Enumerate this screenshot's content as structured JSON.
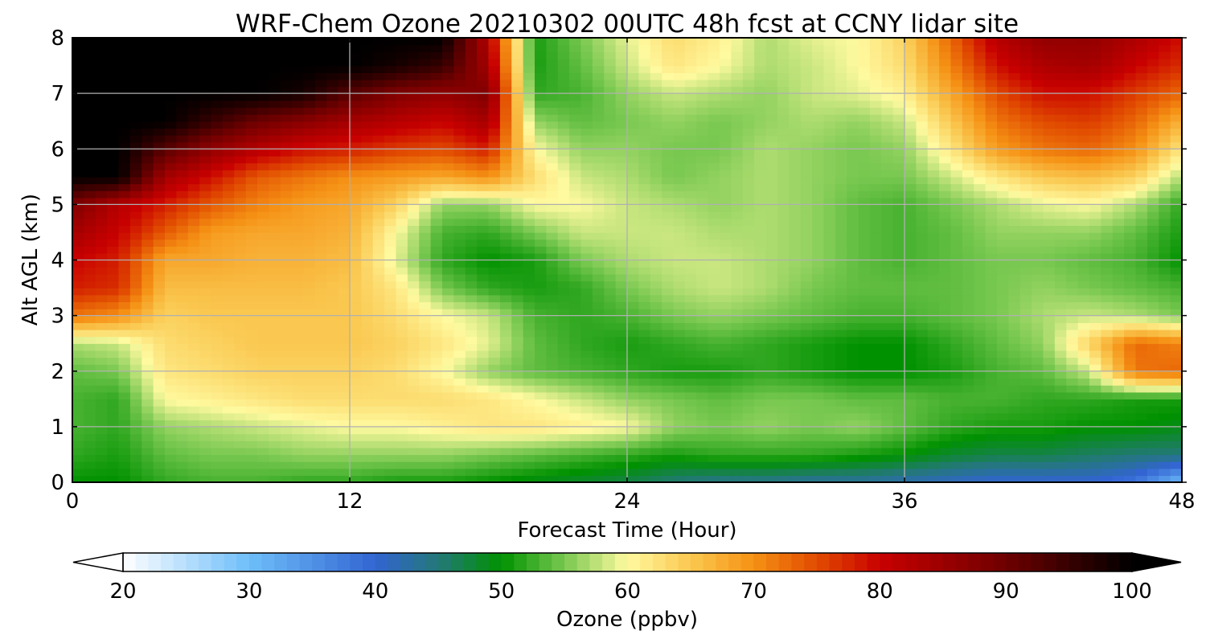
{
  "chart_data": {
    "type": "heatmap",
    "title": "WRF-Chem Ozone  20210302 00UTC 48h fcst at CCNY lidar site",
    "xlabel": "Forecast Time (Hour)",
    "ylabel": "Alt AGL (km)",
    "xlim": [
      0,
      48
    ],
    "ylim": [
      0,
      8
    ],
    "x_ticks": [
      "0",
      "12",
      "24",
      "36",
      "48"
    ],
    "y_ticks": [
      "0",
      "1",
      "2",
      "3",
      "4",
      "5",
      "6",
      "7",
      "8"
    ],
    "grid": true,
    "colorbar": {
      "label": "Ozone  (ppbv)",
      "min": 20,
      "max": 100,
      "ticks": [
        "20",
        "30",
        "40",
        "50",
        "60",
        "70",
        "80",
        "90",
        "100"
      ],
      "extend": "both",
      "orientation": "horizontal"
    },
    "x": [
      0,
      2,
      4,
      6,
      8,
      10,
      12,
      14,
      16,
      18,
      20,
      22,
      24,
      26,
      28,
      30,
      32,
      34,
      36,
      38,
      40,
      42,
      44,
      46,
      48
    ],
    "y": [
      0,
      0.5,
      1,
      1.5,
      2,
      2.5,
      3,
      3.5,
      4,
      4.5,
      5,
      5.5,
      6,
      6.5,
      7,
      7.5,
      8
    ],
    "z": [
      [
        50,
        50,
        52,
        53,
        53,
        52,
        52,
        51,
        51,
        50,
        49,
        48,
        47,
        45,
        44,
        44,
        43,
        43,
        42,
        41,
        40,
        40,
        40,
        38,
        30
      ],
      [
        52,
        51,
        54,
        55,
        55,
        56,
        56,
        56,
        56,
        55,
        54,
        53,
        52,
        51,
        52,
        52,
        52,
        51,
        50,
        48,
        47,
        47,
        46,
        45,
        45
      ],
      [
        53,
        52,
        56,
        57,
        58,
        59,
        60,
        60,
        61,
        62,
        62,
        61,
        60,
        56,
        55,
        56,
        55,
        56,
        54,
        52,
        51,
        51,
        50,
        50,
        49
      ],
      [
        53,
        52,
        60,
        61,
        62,
        63,
        63,
        63,
        63,
        62,
        60,
        58,
        56,
        55,
        54,
        55,
        55,
        54,
        54,
        53,
        53,
        52,
        52,
        51,
        51
      ],
      [
        54,
        55,
        62,
        63,
        64,
        64,
        64,
        63,
        60,
        56,
        54,
        53,
        52,
        51,
        51,
        52,
        51,
        50,
        50,
        51,
        53,
        54,
        58,
        72,
        73
      ],
      [
        57,
        58,
        63,
        64,
        65,
        65,
        65,
        64,
        62,
        59,
        54,
        52,
        51,
        52,
        53,
        52,
        51,
        50,
        50,
        52,
        54,
        56,
        64,
        73,
        71
      ],
      [
        72,
        70,
        64,
        65,
        65,
        65,
        65,
        63,
        60,
        58,
        53,
        52,
        53,
        55,
        56,
        55,
        54,
        53,
        53,
        54,
        55,
        57,
        58,
        57,
        55
      ],
      [
        78,
        77,
        66,
        66,
        66,
        66,
        65,
        62,
        55,
        52,
        51,
        52,
        55,
        57,
        58,
        57,
        55,
        54,
        54,
        54,
        55,
        56,
        55,
        54,
        53
      ],
      [
        80,
        78,
        68,
        68,
        67,
        67,
        66,
        59,
        52,
        50,
        51,
        55,
        57,
        58,
        58,
        57,
        56,
        54,
        53,
        54,
        55,
        55,
        54,
        53,
        50
      ],
      [
        84,
        80,
        74,
        69,
        68,
        68,
        67,
        60,
        53,
        52,
        55,
        58,
        58,
        58,
        57,
        57,
        56,
        54,
        53,
        54,
        56,
        56,
        56,
        54,
        51
      ],
      [
        88,
        82,
        78,
        74,
        71,
        69,
        68,
        64,
        56,
        56,
        60,
        60,
        58,
        57,
        56,
        57,
        56,
        54,
        53,
        55,
        57,
        59,
        60,
        57,
        52
      ],
      [
        100,
        100,
        84,
        79,
        74,
        72,
        70,
        69,
        68,
        70,
        63,
        58,
        57,
        55,
        56,
        57,
        56,
        55,
        55,
        58,
        62,
        65,
        66,
        64,
        57
      ],
      [
        100,
        100,
        92,
        86,
        82,
        79,
        78,
        76,
        75,
        78,
        60,
        56,
        56,
        55,
        55,
        57,
        56,
        55,
        56,
        62,
        69,
        72,
        73,
        70,
        62
      ],
      [
        100,
        100,
        100,
        95,
        90,
        87,
        84,
        82,
        80,
        84,
        56,
        54,
        55,
        56,
        55,
        56,
        57,
        56,
        58,
        65,
        72,
        75,
        76,
        73,
        67
      ],
      [
        100,
        100,
        100,
        100,
        100,
        98,
        92,
        88,
        86,
        88,
        52,
        53,
        56,
        58,
        57,
        56,
        58,
        59,
        61,
        68,
        75,
        79,
        79,
        76,
        73
      ],
      [
        100,
        100,
        100,
        100,
        100,
        100,
        100,
        98,
        95,
        84,
        51,
        54,
        58,
        62,
        60,
        57,
        58,
        60,
        63,
        71,
        79,
        83,
        84,
        80,
        77
      ],
      [
        100,
        100,
        100,
        100,
        100,
        100,
        100,
        100,
        100,
        82,
        51,
        55,
        59,
        63,
        61,
        57,
        59,
        60,
        64,
        73,
        82,
        86,
        86,
        83,
        79
      ]
    ]
  }
}
